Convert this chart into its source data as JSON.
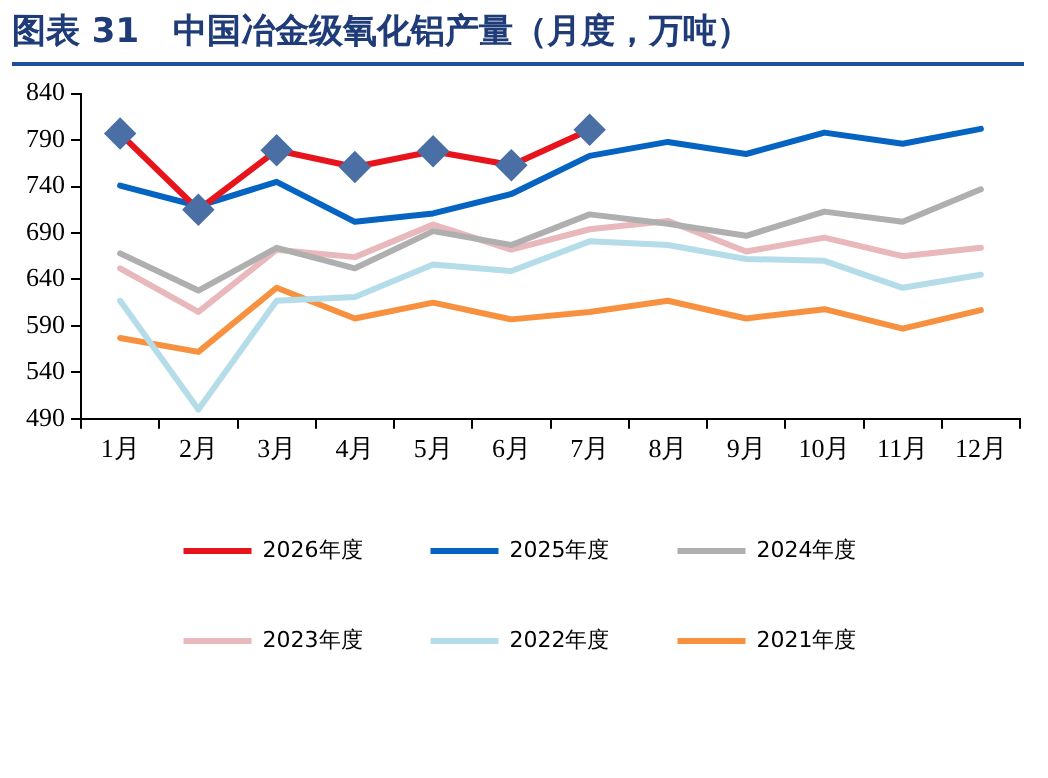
{
  "chart_data": {
    "type": "line",
    "title": "图表 31　中国冶金级氧化铝产量（月度，万吨）",
    "categories": [
      "1月",
      "2月",
      "3月",
      "4月",
      "5月",
      "6月",
      "7月",
      "8月",
      "9月",
      "10月",
      "11月",
      "12月"
    ],
    "series": [
      {
        "name": "2026年度",
        "color": "#e8141c",
        "marker": "diamond",
        "values": [
          797,
          715,
          779,
          761,
          778,
          763,
          801,
          null,
          null,
          null,
          null,
          null
        ]
      },
      {
        "name": "2025年度",
        "color": "#0563c1",
        "values": [
          741,
          719,
          745,
          702,
          711,
          732,
          773,
          788,
          775,
          798,
          786,
          802
        ]
      },
      {
        "name": "2024年度",
        "color": "#afafaf",
        "values": [
          668,
          628,
          674,
          652,
          692,
          677,
          710,
          700,
          687,
          713,
          702,
          737
        ]
      },
      {
        "name": "2023年度",
        "color": "#e8b8bc",
        "values": [
          652,
          605,
          672,
          664,
          699,
          672,
          694,
          703,
          670,
          685,
          665,
          674
        ]
      },
      {
        "name": "2022年度",
        "color": "#b4dce9",
        "values": [
          617,
          500,
          617,
          621,
          656,
          649,
          681,
          677,
          662,
          660,
          631,
          645
        ]
      },
      {
        "name": "2021年度",
        "color": "#f7913f",
        "values": [
          577,
          562,
          631,
          598,
          615,
          597,
          605,
          617,
          598,
          608,
          587,
          607
        ]
      }
    ],
    "ylim": [
      490,
      840
    ],
    "yticks": [
      490,
      540,
      590,
      640,
      690,
      740,
      790,
      840
    ],
    "grid": false,
    "legend": "bottom",
    "marker": "none"
  }
}
